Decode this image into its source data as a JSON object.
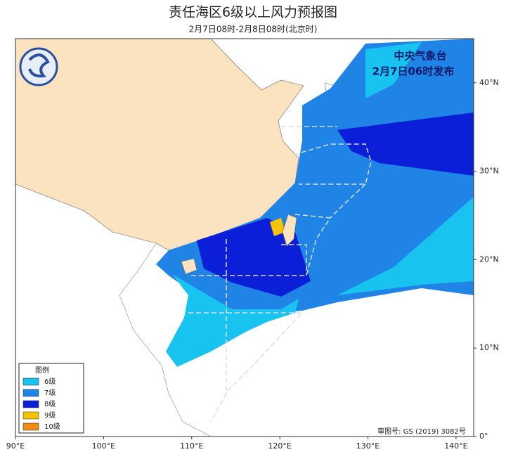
{
  "header": {
    "title": "责任海区6级以上风力预报图",
    "subtitle": "2月7日08时-2月8日08时(北京时)"
  },
  "agency": {
    "name": "中央气象台",
    "issued": "2月7日06时发布"
  },
  "map": {
    "xlim": [
      90,
      142
    ],
    "ylim": [
      0,
      45
    ],
    "xticks": [
      {
        "value": 90,
        "label": "90°E"
      },
      {
        "value": 100,
        "label": "100°E"
      },
      {
        "value": 110,
        "label": "110°E"
      },
      {
        "value": 120,
        "label": "120°E"
      },
      {
        "value": 130,
        "label": "130°E"
      },
      {
        "value": 140,
        "label": "140°E"
      }
    ],
    "yticks": [
      {
        "value": 0,
        "label": "0°"
      },
      {
        "value": 10,
        "label": "10°N"
      },
      {
        "value": 20,
        "label": "20°N"
      },
      {
        "value": 30,
        "label": "30°N"
      },
      {
        "value": 40,
        "label": "40°N"
      }
    ]
  },
  "legend": {
    "title": "图例",
    "items": [
      {
        "label": "6级",
        "color": "#19c3f0"
      },
      {
        "label": "7级",
        "color": "#1f84e6"
      },
      {
        "label": "8级",
        "color": "#0b1ed8"
      },
      {
        "label": "9级",
        "color": "#f5c400"
      },
      {
        "label": "10级",
        "color": "#f08c14"
      }
    ]
  },
  "approval": "审图号: GS (2019) 3082号"
}
